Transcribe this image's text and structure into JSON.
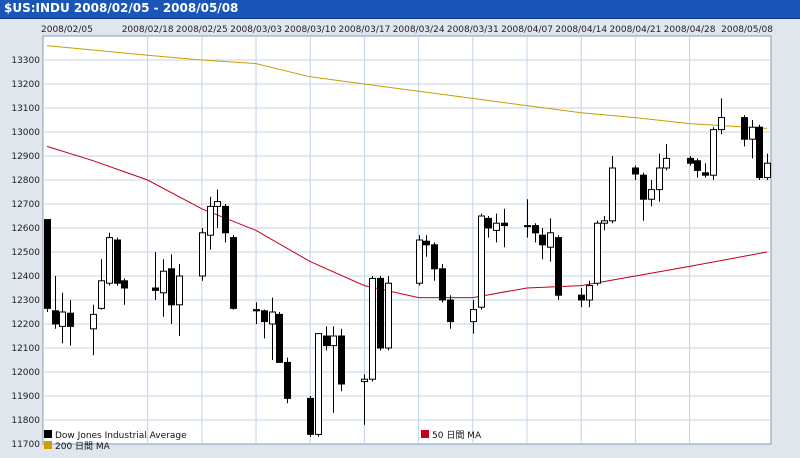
{
  "window": {
    "title": "$US:INDU 2008/02/05 - 2008/05/08"
  },
  "colors": {
    "title_bar": "#1a55b8",
    "background": "#dfe6ee",
    "plot_background": "#ffffff",
    "grid": "#c0d3ea",
    "candle_up": "#ffffff",
    "candle_down": "#000000",
    "ma50": "#c4001a",
    "ma200": "#c8a000"
  },
  "chart_data": {
    "type": "candlestick",
    "title": "$US:INDU 2008/02/05 - 2008/05/08",
    "ylim": [
      11700,
      13400
    ],
    "y_ticks": [
      11700,
      11800,
      11900,
      12000,
      12100,
      12200,
      12300,
      12400,
      12500,
      12600,
      12700,
      12800,
      12900,
      13000,
      13100,
      13200,
      13300
    ],
    "x_tick_labels": [
      "2008/02/05",
      "2008/02/18",
      "2008/02/25",
      "2008/03/03",
      "2008/03/10",
      "2008/03/17",
      "2008/03/24",
      "2008/03/31",
      "2008/04/07",
      "2008/04/14",
      "2008/04/21",
      "2008/04/28",
      "2008/05/08"
    ],
    "x_tick_dates": [
      "2008-02-05",
      "2008-02-18",
      "2008-02-25",
      "2008-03-03",
      "2008-03-10",
      "2008-03-17",
      "2008-03-24",
      "2008-03-31",
      "2008-04-07",
      "2008-04-14",
      "2008-04-21",
      "2008-04-28",
      "2008-05-08"
    ],
    "grid": true,
    "legend": [
      {
        "label": "Dow Jones Industrial Average",
        "color": "#000000"
      },
      {
        "label": "200 日間 MA",
        "color": "#c8a000"
      },
      {
        "label": "50 日間 MA",
        "color": "#c4001a"
      }
    ],
    "legend_placement": "bottom",
    "series": [
      {
        "name": "Dow Jones Industrial Average",
        "candles": [
          {
            "date": "2008-02-05",
            "open": 12635,
            "high": 12635,
            "low": 12250,
            "close": 12265
          },
          {
            "date": "2008-02-06",
            "open": 12255,
            "high": 12400,
            "low": 12180,
            "close": 12200
          },
          {
            "date": "2008-02-07",
            "open": 12190,
            "high": 12330,
            "low": 12120,
            "close": 12250
          },
          {
            "date": "2008-02-08",
            "open": 12245,
            "high": 12300,
            "low": 12110,
            "close": 12190
          },
          {
            "date": "2008-02-11",
            "open": 12180,
            "high": 12280,
            "low": 12070,
            "close": 12240
          },
          {
            "date": "2008-02-12",
            "open": 12265,
            "high": 12470,
            "low": 12260,
            "close": 12380
          },
          {
            "date": "2008-02-13",
            "open": 12370,
            "high": 12580,
            "low": 12360,
            "close": 12560
          },
          {
            "date": "2008-02-14",
            "open": 12550,
            "high": 12560,
            "low": 12360,
            "close": 12370
          },
          {
            "date": "2008-02-15",
            "open": 12380,
            "high": 12390,
            "low": 12280,
            "close": 12350
          },
          {
            "date": "2008-02-19",
            "open": 12350,
            "high": 12500,
            "low": 12300,
            "close": 12340
          },
          {
            "date": "2008-02-20",
            "open": 12330,
            "high": 12470,
            "low": 12230,
            "close": 12420
          },
          {
            "date": "2008-02-21",
            "open": 12430,
            "high": 12490,
            "low": 12200,
            "close": 12280
          },
          {
            "date": "2008-02-22",
            "open": 12280,
            "high": 12450,
            "low": 12150,
            "close": 12400
          },
          {
            "date": "2008-02-25",
            "open": 12400,
            "high": 12600,
            "low": 12380,
            "close": 12580
          },
          {
            "date": "2008-02-26",
            "open": 12570,
            "high": 12730,
            "low": 12510,
            "close": 12690
          },
          {
            "date": "2008-02-27",
            "open": 12690,
            "high": 12760,
            "low": 12600,
            "close": 12710
          },
          {
            "date": "2008-02-28",
            "open": 12690,
            "high": 12700,
            "low": 12540,
            "close": 12580
          },
          {
            "date": "2008-02-29",
            "open": 12560,
            "high": 12570,
            "low": 12260,
            "close": 12265
          },
          {
            "date": "2008-03-03",
            "open": 12260,
            "high": 12290,
            "low": 12200,
            "close": 12255
          },
          {
            "date": "2008-03-04",
            "open": 12255,
            "high": 12260,
            "low": 12140,
            "close": 12210
          },
          {
            "date": "2008-03-05",
            "open": 12200,
            "high": 12310,
            "low": 12050,
            "close": 12250
          },
          {
            "date": "2008-03-06",
            "open": 12240,
            "high": 12250,
            "low": 12040,
            "close": 12040
          },
          {
            "date": "2008-03-07",
            "open": 12040,
            "high": 12060,
            "low": 11870,
            "close": 11890
          },
          {
            "date": "2008-03-10",
            "open": 11890,
            "high": 11900,
            "low": 11730,
            "close": 11740
          },
          {
            "date": "2008-03-11",
            "open": 11740,
            "high": 12160,
            "low": 11730,
            "close": 12160
          },
          {
            "date": "2008-03-12",
            "open": 12150,
            "high": 12190,
            "low": 12090,
            "close": 12110
          },
          {
            "date": "2008-03-13",
            "open": 12110,
            "high": 12190,
            "low": 11830,
            "close": 12150
          },
          {
            "date": "2008-03-14",
            "open": 12150,
            "high": 12180,
            "low": 11920,
            "close": 11950
          },
          {
            "date": "2008-03-17",
            "open": 11960,
            "high": 11990,
            "low": 11780,
            "close": 11970
          },
          {
            "date": "2008-03-18",
            "open": 11970,
            "high": 12400,
            "low": 11960,
            "close": 12390
          },
          {
            "date": "2008-03-19",
            "open": 12390,
            "high": 12400,
            "low": 12090,
            "close": 12100
          },
          {
            "date": "2008-03-20",
            "open": 12100,
            "high": 12400,
            "low": 12090,
            "close": 12370
          },
          {
            "date": "2008-03-24",
            "open": 12370,
            "high": 12570,
            "low": 12360,
            "close": 12550
          },
          {
            "date": "2008-03-25",
            "open": 12545,
            "high": 12570,
            "low": 12480,
            "close": 12530
          },
          {
            "date": "2008-03-26",
            "open": 12530,
            "high": 12540,
            "low": 12380,
            "close": 12430
          },
          {
            "date": "2008-03-27",
            "open": 12430,
            "high": 12450,
            "low": 12290,
            "close": 12300
          },
          {
            "date": "2008-03-28",
            "open": 12300,
            "high": 12320,
            "low": 12180,
            "close": 12210
          },
          {
            "date": "2008-03-31",
            "open": 12210,
            "high": 12300,
            "low": 12160,
            "close": 12260
          },
          {
            "date": "2008-04-01",
            "open": 12270,
            "high": 12660,
            "low": 12260,
            "close": 12650
          },
          {
            "date": "2008-04-02",
            "open": 12640,
            "high": 12650,
            "low": 12560,
            "close": 12600
          },
          {
            "date": "2008-04-03",
            "open": 12590,
            "high": 12660,
            "low": 12540,
            "close": 12620
          },
          {
            "date": "2008-04-04",
            "open": 12620,
            "high": 12680,
            "low": 12520,
            "close": 12610
          },
          {
            "date": "2008-04-07",
            "open": 12610,
            "high": 12720,
            "low": 12560,
            "close": 12610
          },
          {
            "date": "2008-04-08",
            "open": 12610,
            "high": 12620,
            "low": 12540,
            "close": 12580
          },
          {
            "date": "2008-04-09",
            "open": 12570,
            "high": 12600,
            "low": 12470,
            "close": 12530
          },
          {
            "date": "2008-04-10",
            "open": 12520,
            "high": 12640,
            "low": 12460,
            "close": 12580
          },
          {
            "date": "2008-04-11",
            "open": 12560,
            "high": 12570,
            "low": 12300,
            "close": 12320
          },
          {
            "date": "2008-04-14",
            "open": 12320,
            "high": 12350,
            "low": 12270,
            "close": 12300
          },
          {
            "date": "2008-04-15",
            "open": 12300,
            "high": 12380,
            "low": 12270,
            "close": 12360
          },
          {
            "date": "2008-04-16",
            "open": 12370,
            "high": 12630,
            "low": 12360,
            "close": 12620
          },
          {
            "date": "2008-04-17",
            "open": 12620,
            "high": 12650,
            "low": 12590,
            "close": 12630
          },
          {
            "date": "2008-04-18",
            "open": 12630,
            "high": 12900,
            "low": 12620,
            "close": 12850
          },
          {
            "date": "2008-04-21",
            "open": 12850,
            "high": 12860,
            "low": 12800,
            "close": 12825
          },
          {
            "date": "2008-04-22",
            "open": 12820,
            "high": 12830,
            "low": 12630,
            "close": 12720
          },
          {
            "date": "2008-04-23",
            "open": 12720,
            "high": 12800,
            "low": 12690,
            "close": 12760
          },
          {
            "date": "2008-04-24",
            "open": 12760,
            "high": 12910,
            "low": 12710,
            "close": 12850
          },
          {
            "date": "2008-04-25",
            "open": 12850,
            "high": 12950,
            "low": 12840,
            "close": 12890
          },
          {
            "date": "2008-04-28",
            "open": 12890,
            "high": 12900,
            "low": 12860,
            "close": 12870
          },
          {
            "date": "2008-04-29",
            "open": 12880,
            "high": 12890,
            "low": 12810,
            "close": 12840
          },
          {
            "date": "2008-04-30",
            "open": 12830,
            "high": 12870,
            "low": 12810,
            "close": 12820
          },
          {
            "date": "2008-05-01",
            "open": 12820,
            "high": 13020,
            "low": 12800,
            "close": 13010
          },
          {
            "date": "2008-05-02",
            "open": 13010,
            "high": 13140,
            "low": 12990,
            "close": 13060
          },
          {
            "date": "2008-05-05",
            "open": 13060,
            "high": 13070,
            "low": 12940,
            "close": 12970
          },
          {
            "date": "2008-05-06",
            "open": 12970,
            "high": 13050,
            "low": 12890,
            "close": 13020
          },
          {
            "date": "2008-05-07",
            "open": 13020,
            "high": 13030,
            "low": 12800,
            "close": 12810
          },
          {
            "date": "2008-05-08",
            "open": 12810,
            "high": 12910,
            "low": 12800,
            "close": 12870
          }
        ]
      },
      {
        "name": "200 日間 MA",
        "points": [
          {
            "date": "2008-02-05",
            "value": 13360
          },
          {
            "date": "2008-02-18",
            "value": 13320
          },
          {
            "date": "2008-02-25",
            "value": 13300
          },
          {
            "date": "2008-03-03",
            "value": 13285
          },
          {
            "date": "2008-03-10",
            "value": 13230
          },
          {
            "date": "2008-03-17",
            "value": 13200
          },
          {
            "date": "2008-03-24",
            "value": 13170
          },
          {
            "date": "2008-03-31",
            "value": 13140
          },
          {
            "date": "2008-04-07",
            "value": 13110
          },
          {
            "date": "2008-04-14",
            "value": 13080
          },
          {
            "date": "2008-04-21",
            "value": 13060
          },
          {
            "date": "2008-04-28",
            "value": 13035
          },
          {
            "date": "2008-05-08",
            "value": 13015
          }
        ]
      },
      {
        "name": "50 日間 MA",
        "points": [
          {
            "date": "2008-02-05",
            "value": 12940
          },
          {
            "date": "2008-02-11",
            "value": 12880
          },
          {
            "date": "2008-02-18",
            "value": 12800
          },
          {
            "date": "2008-02-25",
            "value": 12680
          },
          {
            "date": "2008-03-03",
            "value": 12590
          },
          {
            "date": "2008-03-10",
            "value": 12460
          },
          {
            "date": "2008-03-17",
            "value": 12360
          },
          {
            "date": "2008-03-24",
            "value": 12310
          },
          {
            "date": "2008-03-31",
            "value": 12310
          },
          {
            "date": "2008-04-07",
            "value": 12350
          },
          {
            "date": "2008-04-14",
            "value": 12360
          },
          {
            "date": "2008-04-21",
            "value": 12400
          },
          {
            "date": "2008-04-28",
            "value": 12440
          },
          {
            "date": "2008-05-08",
            "value": 12500
          }
        ]
      }
    ]
  }
}
